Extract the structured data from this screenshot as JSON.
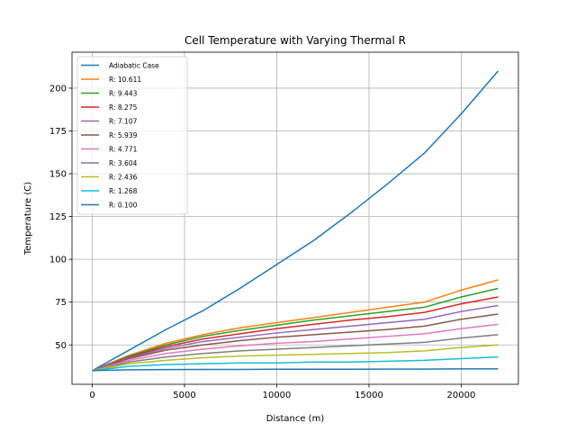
{
  "chart_data": {
    "type": "line",
    "title": "Cell Temperature with Varying Thermal R",
    "xlabel": "Distance (m)",
    "ylabel": "Temperature (C)",
    "xlim": [
      -1100,
      23100
    ],
    "ylim": [
      27,
      221
    ],
    "xticks": [
      0,
      5000,
      10000,
      15000,
      20000
    ],
    "xtick_labels": [
      "0",
      "5000",
      "10000",
      "15000",
      "20000"
    ],
    "yticks": [
      50,
      75,
      100,
      125,
      150,
      175,
      200
    ],
    "ytick_labels": [
      "50",
      "75",
      "100",
      "125",
      "150",
      "175",
      "200"
    ],
    "grid": true,
    "legend_position": "top-left",
    "series": [
      {
        "name": "Adiabatic Case",
        "color": "#1f77b4",
        "x": [
          0,
          2000,
          4000,
          6000,
          8000,
          10000,
          12000,
          14000,
          16000,
          18000,
          20000,
          22000
        ],
        "y": [
          35,
          47,
          59,
          70,
          83,
          97,
          111,
          127,
          144,
          162,
          185,
          210
        ]
      },
      {
        "name": "R: 10.611",
        "color": "#ff7f0e",
        "x": [
          0,
          2000,
          4000,
          6000,
          8000,
          10000,
          12000,
          14000,
          16000,
          18000,
          20000,
          22000
        ],
        "y": [
          35,
          44,
          51,
          56,
          60,
          63,
          66,
          69,
          72,
          75,
          82,
          88
        ]
      },
      {
        "name": "R: 9.443",
        "color": "#2ca02c",
        "x": [
          0,
          2000,
          4000,
          6000,
          8000,
          10000,
          12000,
          14000,
          16000,
          18000,
          20000,
          22000
        ],
        "y": [
          35,
          43.5,
          50,
          55,
          58.5,
          61.5,
          64.5,
          67,
          69.5,
          72,
          78,
          83
        ]
      },
      {
        "name": "R: 8.275",
        "color": "#d62728",
        "x": [
          0,
          2000,
          4000,
          6000,
          8000,
          10000,
          12000,
          14000,
          16000,
          18000,
          20000,
          22000
        ],
        "y": [
          35,
          43,
          49,
          53.5,
          56.5,
          59.5,
          62,
          64.5,
          66.5,
          69,
          74,
          78
        ]
      },
      {
        "name": "R: 7.107",
        "color": "#9467bd",
        "x": [
          0,
          2000,
          4000,
          6000,
          8000,
          10000,
          12000,
          14000,
          16000,
          18000,
          20000,
          22000
        ],
        "y": [
          35,
          42.5,
          48,
          52,
          54.5,
          57,
          59,
          61,
          63,
          65,
          69.5,
          73
        ]
      },
      {
        "name": "R: 5.939",
        "color": "#8c564b",
        "x": [
          0,
          2000,
          4000,
          6000,
          8000,
          10000,
          12000,
          14000,
          16000,
          18000,
          20000,
          22000
        ],
        "y": [
          35,
          42,
          47,
          50,
          52.5,
          54.5,
          56,
          57.5,
          59,
          61,
          65,
          68
        ]
      },
      {
        "name": "R: 4.771",
        "color": "#e377c2",
        "x": [
          0,
          2000,
          4000,
          6000,
          8000,
          10000,
          12000,
          14000,
          16000,
          18000,
          20000,
          22000
        ],
        "y": [
          35,
          41,
          45,
          47.5,
          49.5,
          51,
          52,
          53.5,
          55,
          56.5,
          59.5,
          62
        ]
      },
      {
        "name": "R: 3.604",
        "color": "#7f7f7f",
        "x": [
          0,
          2000,
          4000,
          6000,
          8000,
          10000,
          12000,
          14000,
          16000,
          18000,
          20000,
          22000
        ],
        "y": [
          35,
          40,
          43,
          45,
          46.5,
          47.5,
          48.5,
          49.5,
          50.5,
          51.5,
          54,
          56
        ]
      },
      {
        "name": "R: 2.436",
        "color": "#bcbd22",
        "x": [
          0,
          2000,
          4000,
          6000,
          8000,
          10000,
          12000,
          14000,
          16000,
          18000,
          20000,
          22000
        ],
        "y": [
          35,
          39,
          41,
          42.5,
          43.5,
          44,
          44.5,
          45,
          45.5,
          46.5,
          48.5,
          50
        ]
      },
      {
        "name": "R: 1.268",
        "color": "#17becf",
        "x": [
          0,
          2000,
          4000,
          6000,
          8000,
          10000,
          12000,
          14000,
          16000,
          18000,
          20000,
          22000
        ],
        "y": [
          35,
          37.5,
          38.5,
          39,
          39.5,
          39.5,
          40,
          40,
          40.5,
          41,
          42,
          43
        ]
      },
      {
        "name": "R: 0.100",
        "color": "#1f77b4",
        "x": [
          0,
          2000,
          4000,
          6000,
          8000,
          10000,
          12000,
          14000,
          16000,
          18000,
          20000,
          22000
        ],
        "y": [
          35,
          35.5,
          35.6,
          35.7,
          35.7,
          35.8,
          35.8,
          35.8,
          35.9,
          35.9,
          36,
          36
        ]
      }
    ]
  }
}
